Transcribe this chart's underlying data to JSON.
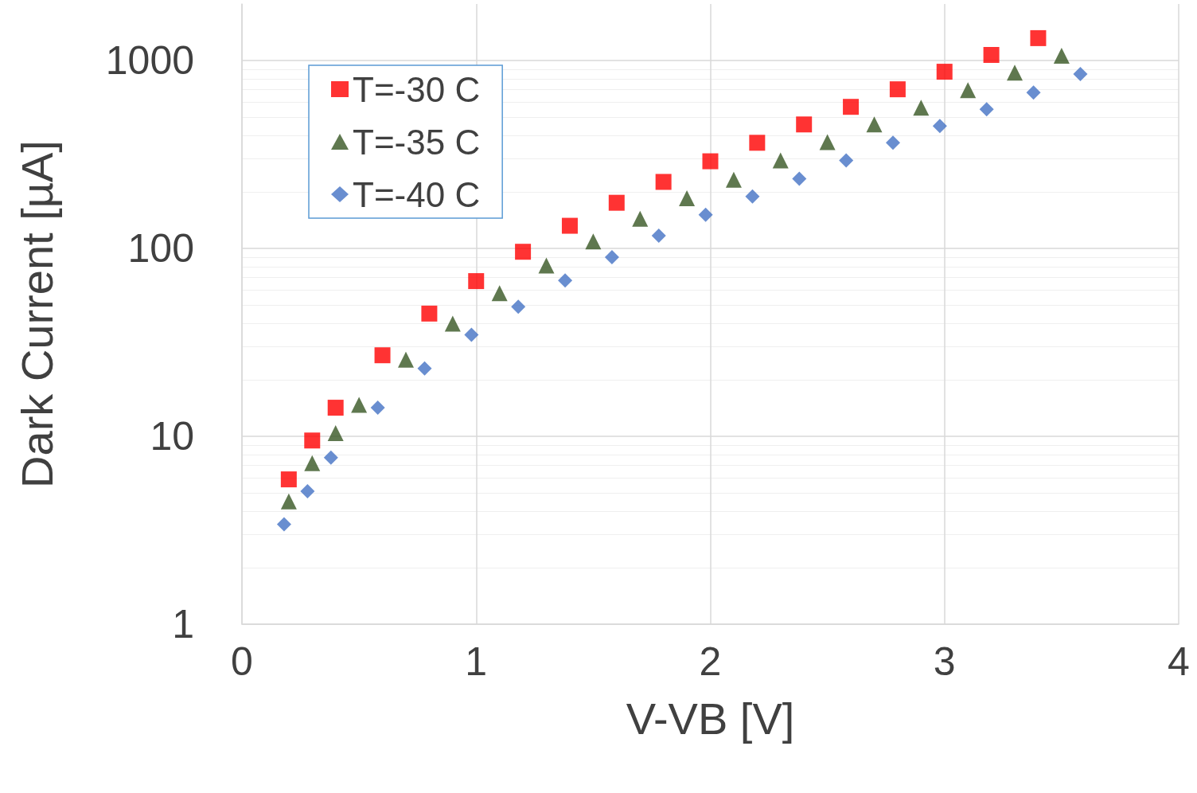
{
  "chart_data": {
    "type": "scatter",
    "xlabel": "V-VB [V]",
    "ylabel": "Dark Current [µA]",
    "log": "y",
    "grid": true,
    "legend": "top left",
    "xlim": [
      0,
      4
    ],
    "xticks": [
      0,
      1,
      2,
      3,
      4
    ],
    "ylim": [
      1,
      2000
    ],
    "yticks": [
      1,
      10,
      100,
      1000
    ],
    "series": [
      {
        "name": "T=-30 C",
        "color": "#ff0000",
        "marker": "square",
        "x": [
          0.2,
          0.3,
          0.4,
          0.6,
          0.8,
          1.0,
          1.2,
          1.4,
          1.6,
          1.8,
          2.0,
          2.2,
          2.4,
          2.6,
          2.8,
          3.0,
          3.2,
          3.4
        ],
        "values": [
          5.9,
          9.5,
          14.2,
          27,
          45,
          67,
          96,
          132,
          175,
          226,
          291,
          365,
          457,
          567,
          703,
          872,
          1071,
          1316
        ]
      },
      {
        "name": "T=-35 C",
        "color": "#375623",
        "marker": "triangle",
        "x": [
          0.2,
          0.3,
          0.4,
          0.5,
          0.7,
          0.9,
          1.1,
          1.3,
          1.5,
          1.7,
          1.9,
          2.1,
          2.3,
          2.5,
          2.7,
          2.9,
          3.1,
          3.3,
          3.5
        ],
        "values": [
          4.5,
          7.2,
          10.4,
          14.7,
          25.6,
          39.8,
          57.8,
          81,
          109,
          144,
          185,
          232,
          294,
          368,
          457,
          561,
          696,
          863,
          1061
        ]
      },
      {
        "name": "T=-40 C",
        "color": "#4472c4",
        "marker": "diamond",
        "x": [
          0.18,
          0.28,
          0.38,
          0.58,
          0.78,
          0.98,
          1.18,
          1.38,
          1.58,
          1.78,
          1.98,
          2.18,
          2.38,
          2.58,
          2.78,
          2.98,
          3.18,
          3.38,
          3.58
        ],
        "values": [
          3.4,
          5.1,
          7.7,
          14.2,
          23,
          34.7,
          48.9,
          67.6,
          89.8,
          117,
          151,
          189,
          235,
          294,
          365,
          448,
          550,
          676,
          847
        ]
      }
    ]
  }
}
